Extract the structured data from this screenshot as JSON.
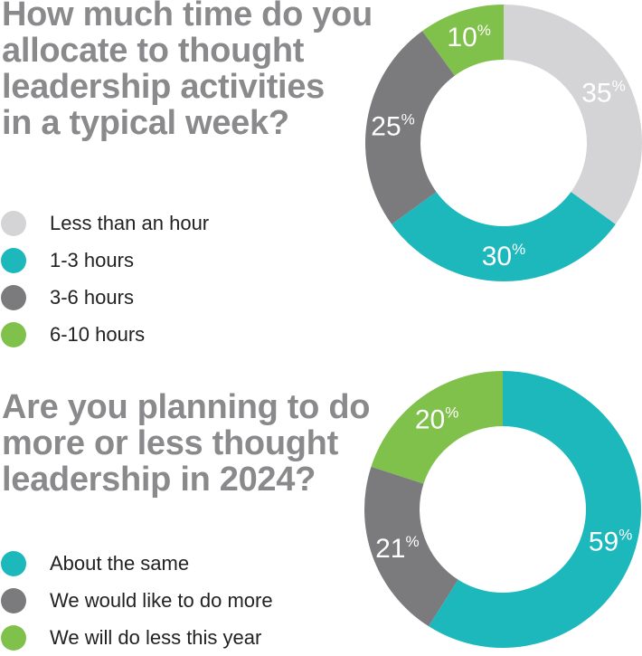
{
  "chart_data": [
    {
      "type": "pie",
      "variant": "donut",
      "title": "How much time do you allocate to thought leadership activities in a typical week?",
      "title_lines": [
        "How much time do you",
        "allocate to thought",
        "leadership activities",
        "in a typical week?"
      ],
      "categories": [
        "Less than an hour",
        "1-3 hours",
        "3-6 hours",
        "6-10 hours"
      ],
      "values": [
        35,
        30,
        25,
        10
      ],
      "unit": "%",
      "colors": [
        "#d4d4d6",
        "#1db8bc",
        "#7b7b7d",
        "#80c14b"
      ],
      "legend": "left",
      "start_angle_deg": 0,
      "direction": "clockwise"
    },
    {
      "type": "pie",
      "variant": "donut",
      "title": "Are you planning to do more or less thought leadership in 2024?",
      "title_lines": [
        "Are you planning to do",
        "more or less thought",
        "leadership in 2024?"
      ],
      "categories": [
        "About the same",
        "We would like to do more",
        "We will do less this year"
      ],
      "values": [
        59,
        21,
        20
      ],
      "unit": "%",
      "colors": [
        "#1db8bc",
        "#7b7b7d",
        "#80c14b"
      ],
      "legend": "left",
      "start_angle_deg": 0,
      "direction": "clockwise"
    }
  ]
}
